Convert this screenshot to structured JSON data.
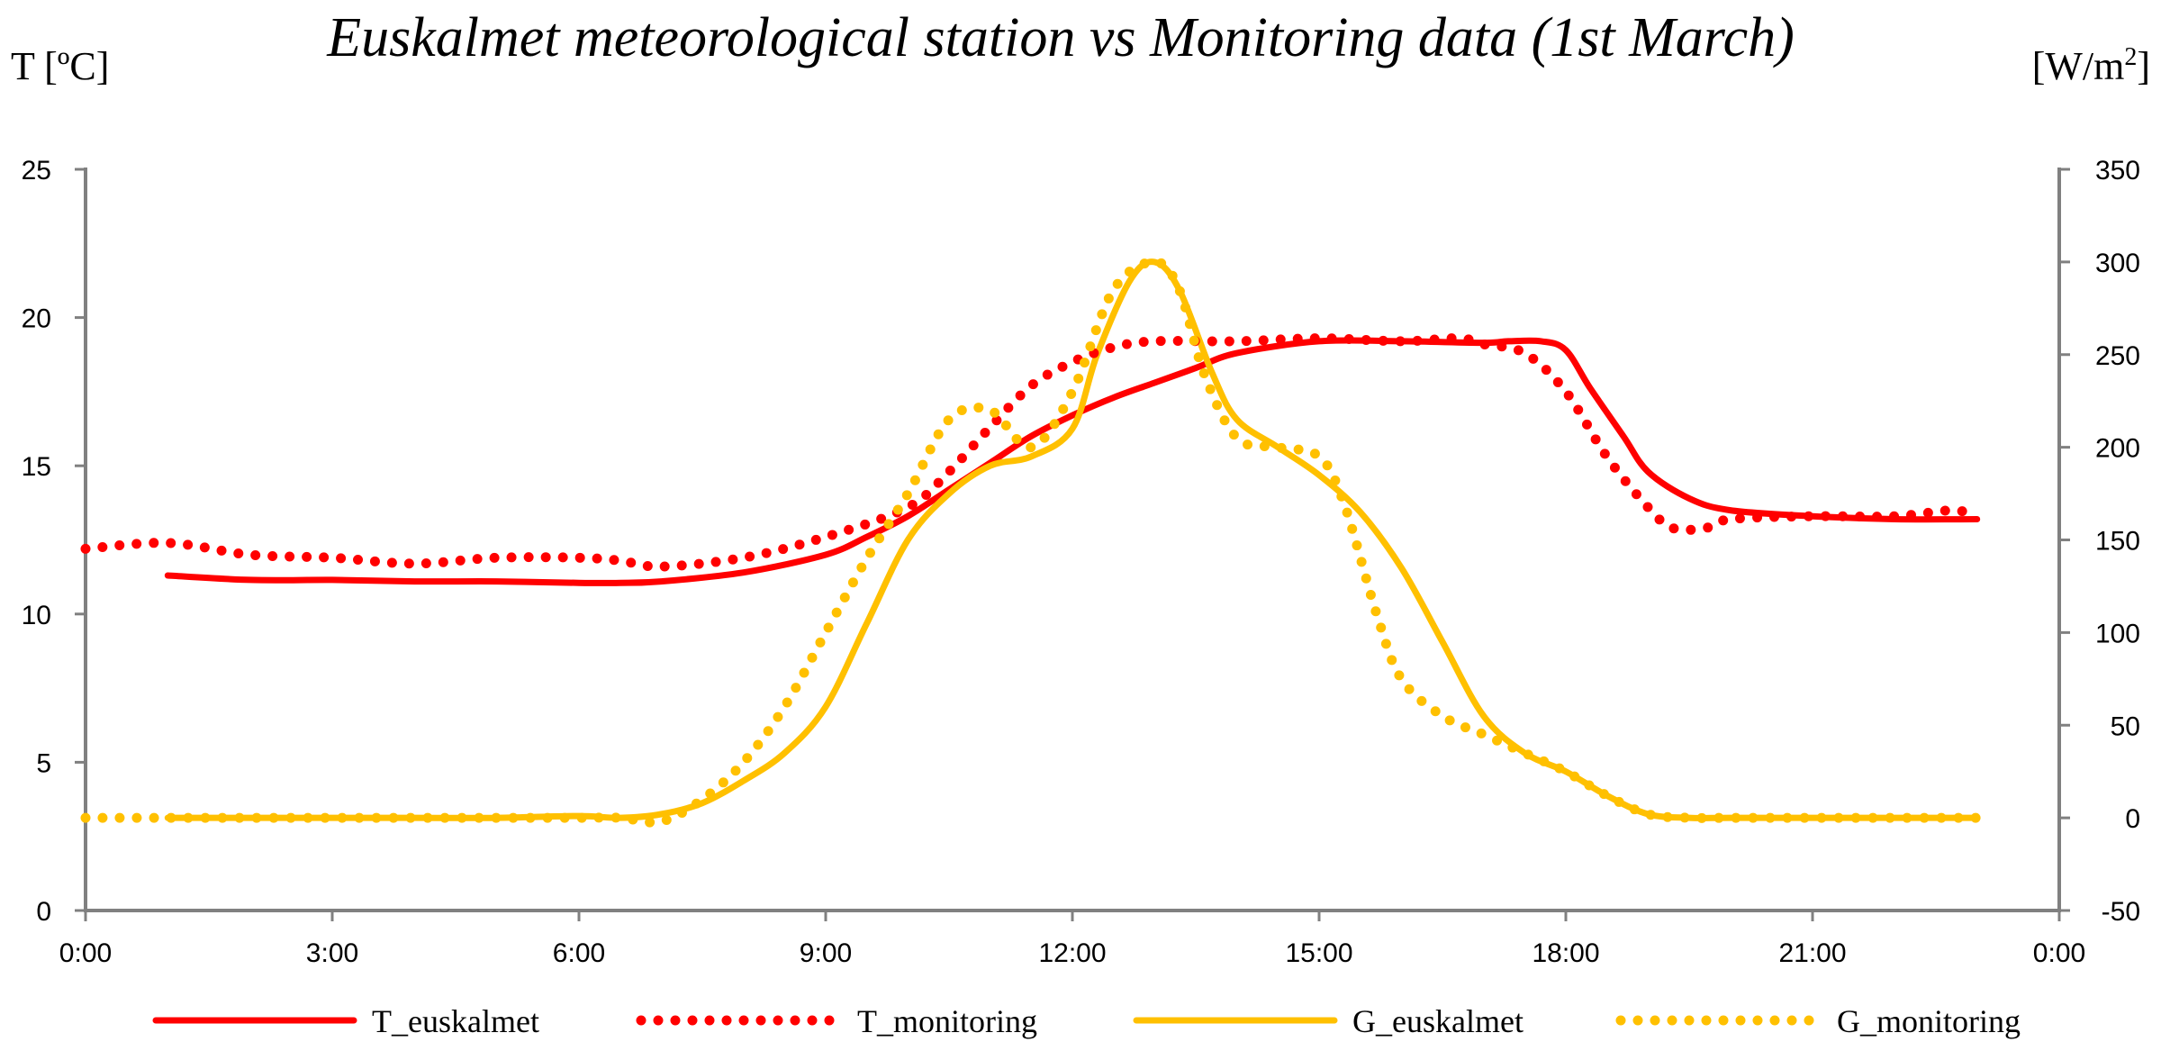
{
  "chart_data": {
    "type": "line",
    "title": "Euskalmet meteorological station vs Monitoring data (1st March)",
    "ylabel_left": "T [ºC]",
    "ylabel_right_base": "[W/m",
    "ylabel_right_sup": "2",
    "ylabel_right_close": "]",
    "xlabel": "",
    "x_ticks": [
      "0:00",
      "3:00",
      "6:00",
      "9:00",
      "12:00",
      "15:00",
      "18:00",
      "21:00",
      "0:00"
    ],
    "xlim_hours": [
      0,
      24
    ],
    "y_left": {
      "lim": [
        0,
        25
      ],
      "ticks": [
        0,
        5,
        10,
        15,
        20,
        25
      ]
    },
    "y_right": {
      "lim": [
        -50,
        350
      ],
      "ticks": [
        -50,
        0,
        50,
        100,
        150,
        200,
        250,
        300,
        350
      ]
    },
    "grid": false,
    "legend_position": "bottom",
    "colors": {
      "temperature": "#ff0000",
      "irradiance": "#ffc000",
      "axis": "#808080"
    },
    "series": [
      {
        "name": "T_euskalmet",
        "axis": "left",
        "style": "solid",
        "color": "#ff0000",
        "x": [
          1,
          2,
          3,
          4,
          5,
          6,
          6.5,
          7,
          8,
          9,
          9.5,
          10,
          10.5,
          11,
          11.5,
          12,
          12.5,
          13,
          13.5,
          14,
          15,
          16,
          17,
          17.3,
          17.7,
          18,
          18.3,
          18.7,
          19,
          19.5,
          20,
          21,
          22,
          23
        ],
        "values": [
          11.3,
          11.15,
          11.15,
          11.1,
          11.1,
          11.05,
          11.05,
          11.1,
          11.4,
          12.0,
          12.6,
          13.3,
          14.2,
          15.1,
          16.0,
          16.7,
          17.3,
          17.8,
          18.3,
          18.8,
          19.2,
          19.2,
          19.15,
          19.2,
          19.2,
          18.9,
          17.6,
          16.0,
          14.8,
          13.9,
          13.5,
          13.3,
          13.2,
          13.2
        ]
      },
      {
        "name": "T_monitoring",
        "axis": "left",
        "style": "dotted",
        "color": "#ff0000",
        "x": [
          0,
          1,
          2,
          3,
          4,
          5,
          6,
          6.5,
          7,
          8,
          9,
          10,
          10.5,
          11,
          11.5,
          12,
          12.5,
          13,
          14,
          15,
          16,
          16.7,
          17,
          17.5,
          18,
          18.5,
          19,
          19.3,
          19.7,
          20,
          21,
          22,
          22.7,
          23
        ],
        "values": [
          12.2,
          12.4,
          12.0,
          11.9,
          11.7,
          11.9,
          11.9,
          11.8,
          11.6,
          11.9,
          12.6,
          13.6,
          14.8,
          16.3,
          17.7,
          18.5,
          19.0,
          19.2,
          19.2,
          19.3,
          19.2,
          19.3,
          19.1,
          18.8,
          17.5,
          15.3,
          13.6,
          12.9,
          12.9,
          13.2,
          13.3,
          13.3,
          13.5,
          13.3
        ]
      },
      {
        "name": "G_euskalmet",
        "axis": "right",
        "style": "solid",
        "color": "#ffc000",
        "x": [
          1,
          2,
          3,
          4,
          5,
          6,
          6.5,
          7,
          7.5,
          8,
          8.5,
          9,
          9.5,
          10,
          10.5,
          11,
          11.5,
          12,
          12.3,
          12.7,
          13,
          13.3,
          13.7,
          14,
          14.5,
          15,
          15.5,
          16,
          16.5,
          17,
          17.5,
          18,
          18.5,
          19,
          19.5,
          20,
          21,
          22,
          23
        ],
        "values": [
          0,
          0,
          0,
          0,
          0,
          1,
          0,
          2,
          8,
          20,
          35,
          60,
          105,
          150,
          175,
          190,
          195,
          210,
          250,
          290,
          300,
          285,
          240,
          215,
          200,
          185,
          165,
          135,
          95,
          55,
          35,
          25,
          12,
          2,
          0,
          0,
          0,
          0,
          0
        ]
      },
      {
        "name": "G_monitoring",
        "axis": "right",
        "style": "dotted",
        "color": "#ffc000",
        "x": [
          0,
          1,
          2,
          3,
          4,
          5,
          6,
          6.5,
          7,
          7.5,
          8,
          8.5,
          9,
          9.5,
          10,
          10.5,
          11,
          11.5,
          12,
          12.5,
          13,
          13.3,
          13.6,
          14,
          14.5,
          15,
          15.3,
          15.7,
          16,
          16.5,
          17,
          17.5,
          18,
          18.5,
          19,
          19.5,
          20,
          21,
          22,
          23
        ],
        "values": [
          0,
          0,
          0,
          0,
          0,
          0,
          0,
          0,
          -2,
          10,
          30,
          60,
          100,
          140,
          175,
          215,
          220,
          200,
          230,
          285,
          300,
          285,
          240,
          205,
          200,
          195,
          170,
          110,
          75,
          55,
          45,
          35,
          25,
          12,
          2,
          0,
          0,
          0,
          0,
          0
        ]
      }
    ]
  }
}
